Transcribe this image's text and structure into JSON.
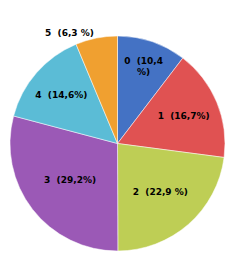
{
  "chart_data": {
    "type": "pie",
    "values": [
      10.4,
      16.7,
      22.9,
      29.2,
      14.6,
      6.3
    ],
    "value_labels": [
      "0  (10,4\n%)",
      "1  (16,7%)",
      "2  (22,9 %)",
      "3  (29,2%)",
      "4  (14,6%)",
      "5  (6,3 %)"
    ],
    "colors": [
      "#4472C4",
      "#E05252",
      "#BECE55",
      "#9B59B6",
      "#5BBCD6",
      "#F0A030"
    ],
    "data_labels": true
  }
}
